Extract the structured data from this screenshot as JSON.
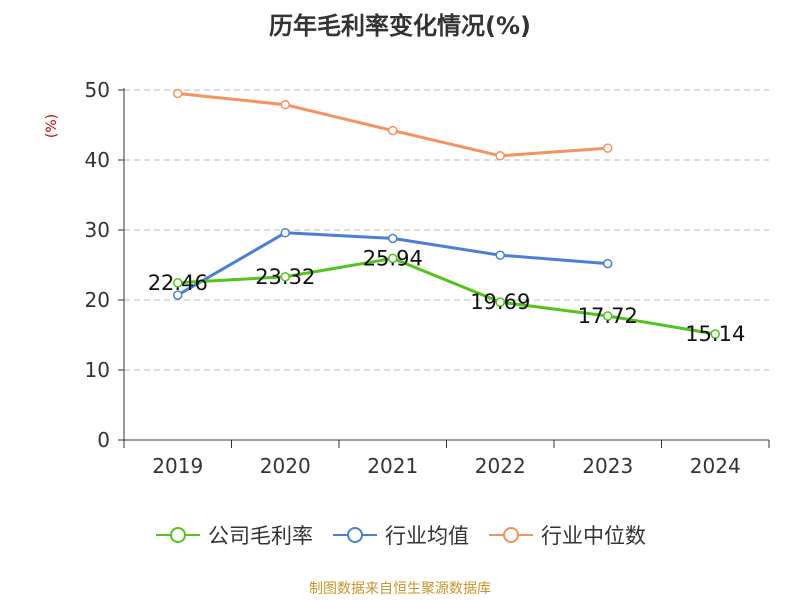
{
  "title": "历年毛利率变化情况(%)",
  "source_note": "制图数据来自恒生聚源数据库",
  "chart_data": {
    "type": "line",
    "title": "历年毛利率变化情况(%)",
    "ylabel": "(%)",
    "xlabel": "",
    "categories": [
      "2019",
      "2020",
      "2021",
      "2022",
      "2023",
      "2024"
    ],
    "ylim": [
      0,
      50
    ],
    "yticks": [
      0,
      10,
      20,
      30,
      40,
      50
    ],
    "grid": true,
    "legend_position": "bottom",
    "series": [
      {
        "name": "公司毛利率",
        "color": "#52c41a",
        "values": [
          22.46,
          23.32,
          25.94,
          19.69,
          17.72,
          15.14
        ],
        "labels": [
          "22.46",
          "23.32",
          "25.94",
          "19.69",
          "17.72",
          "15.14"
        ]
      },
      {
        "name": "行业均值",
        "color": "#4a7fd6",
        "values": [
          20.7,
          29.6,
          28.8,
          26.4,
          25.2,
          null
        ]
      },
      {
        "name": "行业中位数",
        "color": "#f5925e",
        "values": [
          49.5,
          47.9,
          44.2,
          40.6,
          41.7,
          null
        ]
      }
    ]
  }
}
